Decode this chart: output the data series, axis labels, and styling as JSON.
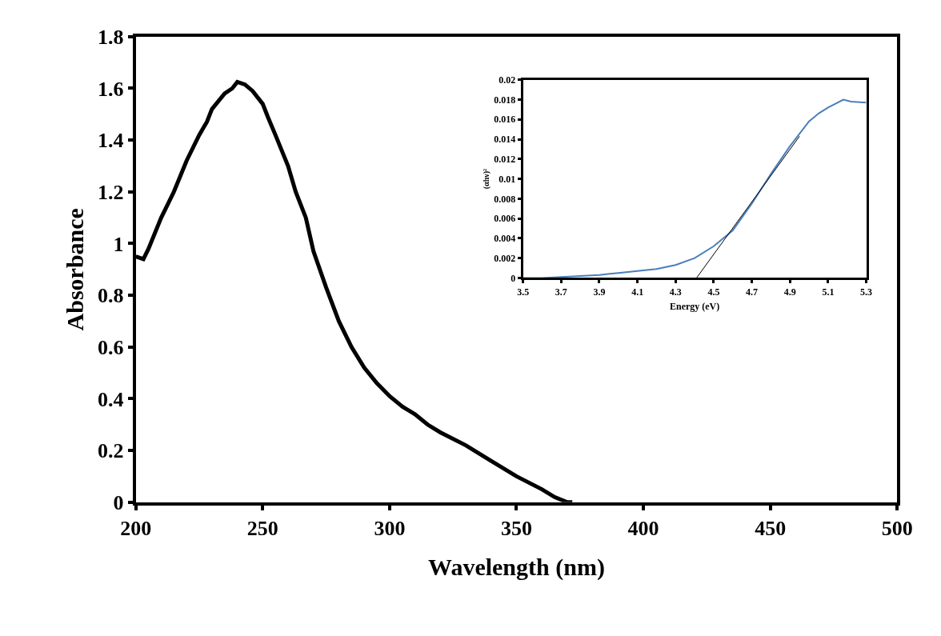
{
  "chart_data": [
    {
      "type": "line",
      "xlabel": "Wavelength (nm)",
      "ylabel": "Absorbance",
      "xlim": [
        200,
        500
      ],
      "xticks": [
        200,
        250,
        300,
        350,
        400,
        450,
        500
      ],
      "ylim": [
        0,
        1.8
      ],
      "yticks": [
        0,
        0.2,
        0.4,
        0.6,
        0.8,
        1,
        1.2,
        1.4,
        1.6,
        1.8
      ],
      "marker": "none",
      "line_style": "solid",
      "series": [
        {
          "color": "#000000",
          "x": [
            200,
            203,
            205,
            210,
            215,
            220,
            225,
            228,
            230,
            235,
            238,
            240,
            243,
            246,
            250,
            252,
            255,
            260,
            263,
            267,
            270,
            275,
            280,
            285,
            290,
            295,
            300,
            305,
            310,
            315,
            320,
            330,
            340,
            350,
            360,
            365,
            370,
            372
          ],
          "values": [
            0.95,
            0.94,
            0.98,
            1.1,
            1.2,
            1.32,
            1.42,
            1.47,
            1.52,
            1.58,
            1.6,
            1.625,
            1.615,
            1.59,
            1.54,
            1.49,
            1.42,
            1.3,
            1.2,
            1.1,
            0.97,
            0.83,
            0.7,
            0.6,
            0.52,
            0.46,
            0.41,
            0.37,
            0.34,
            0.3,
            0.27,
            0.22,
            0.16,
            0.1,
            0.05,
            0.02,
            0.0,
            0.0
          ]
        }
      ]
    },
    {
      "type": "line",
      "xlabel": "Energy (eV)",
      "ylabel": "(αhν)²",
      "xlim": [
        3.5,
        5.3
      ],
      "xticks": [
        3.5,
        3.7,
        3.9,
        4.1,
        4.3,
        4.5,
        4.7,
        4.9,
        5.1,
        5.3
      ],
      "ylim": [
        0,
        0.02
      ],
      "yticks": [
        0,
        0.002,
        0.004,
        0.006,
        0.008,
        0.01,
        0.012,
        0.014,
        0.016,
        0.018,
        0.02
      ],
      "marker": "none",
      "line_style": "solid",
      "series": [
        {
          "color": "#4a7ebb",
          "x": [
            3.5,
            3.6,
            3.7,
            3.8,
            3.9,
            4.0,
            4.1,
            4.2,
            4.3,
            4.4,
            4.5,
            4.6,
            4.7,
            4.8,
            4.9,
            5.0,
            5.05,
            5.1,
            5.18,
            5.22,
            5.3
          ],
          "values": [
            0,
            0,
            0.0001,
            0.0002,
            0.0003,
            0.0005,
            0.0007,
            0.0009,
            0.0013,
            0.002,
            0.0032,
            0.0048,
            0.0075,
            0.0105,
            0.0133,
            0.0158,
            0.0166,
            0.0172,
            0.018,
            0.0178,
            0.0177
          ]
        },
        {
          "color": "#000000",
          "x": [
            4.41,
            4.95
          ],
          "values": [
            0,
            0.0143
          ]
        }
      ]
    }
  ]
}
